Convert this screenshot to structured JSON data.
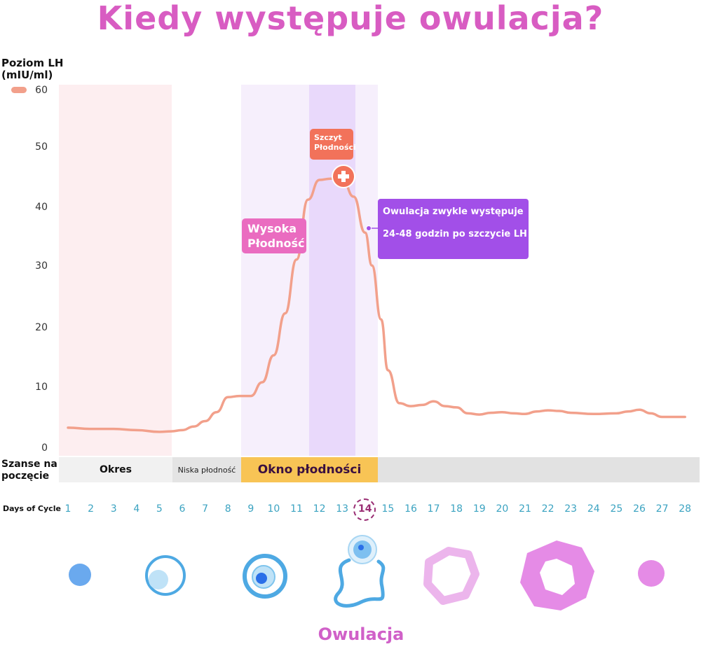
{
  "title": "Kiedy występuje owulacja?",
  "y_axis_label": [
    "Poziom LH",
    "(mIU/ml)"
  ],
  "chart_data": {
    "type": "line",
    "ylim": [
      0,
      60
    ],
    "yticks": [
      "60",
      "50",
      "40",
      "30",
      "20",
      "10",
      "0"
    ],
    "x": [
      1,
      2,
      3,
      4,
      5,
      6,
      7,
      8,
      9,
      10,
      11,
      12,
      13,
      14,
      15,
      16,
      17,
      18,
      19,
      20,
      21,
      22,
      23,
      24,
      25,
      26,
      27,
      28
    ],
    "series": [
      {
        "color": "#f2a08b",
        "x": [
          1,
          2,
          3,
          4,
          5,
          5.5,
          6,
          6.5,
          7,
          7.5,
          8,
          8.5,
          9,
          9.5,
          10,
          10.5,
          11,
          11.5,
          12,
          12.5,
          13,
          13.5,
          14,
          14.3,
          14.7,
          15,
          15.5,
          16,
          16.5,
          17,
          17.5,
          18,
          18.5,
          19,
          19.5,
          20,
          20.5,
          21,
          21.5,
          22,
          22.5,
          23,
          24,
          25,
          25.5,
          26,
          26.5,
          27,
          28
        ],
        "values": [
          3.4,
          3.2,
          3.2,
          3.0,
          2.7,
          2.8,
          3.0,
          3.6,
          4.5,
          6.0,
          8.5,
          8.7,
          8.7,
          11.0,
          15.5,
          22.5,
          31.5,
          41.5,
          44.8,
          45.0,
          45.0,
          42.0,
          36.0,
          30.5,
          21.5,
          13.0,
          7.5,
          7.0,
          7.2,
          7.8,
          7.0,
          6.8,
          5.8,
          5.6,
          5.9,
          6.0,
          5.8,
          5.7,
          6.1,
          6.3,
          6.2,
          5.9,
          5.7,
          5.8,
          6.1,
          6.4,
          5.8,
          5.2,
          5.2
        ]
      }
    ],
    "peak_label": [
      "Szczyt",
      "Płodności"
    ],
    "high_fertility_label": [
      "Wysoka",
      "Płodność"
    ],
    "ovulation_note": [
      "Owulacja zwykle występuje",
      "24-48 godzin po szczycie LH"
    ]
  },
  "chances": {
    "label": [
      "Szanse na",
      "poczęcie"
    ],
    "okres": "Okres",
    "low": "Niska płodność",
    "window": "Okno płodności"
  },
  "days_label": "Days of Cycle",
  "days": [
    "1",
    "2",
    "3",
    "4",
    "5",
    "6",
    "7",
    "8",
    "9",
    "10",
    "11",
    "12",
    "13",
    "14",
    "15",
    "16",
    "17",
    "18",
    "19",
    "20",
    "21",
    "22",
    "23",
    "24",
    "25",
    "26",
    "27",
    "28"
  ],
  "highlight_day": "14",
  "bottom_label": "Owulacja",
  "colors": {
    "title": "#d85cc2",
    "line": "#f2a08b",
    "period_bg": "#fdeef0",
    "window_bg": "#f6effc",
    "peak_bg": "#e9d9fb",
    "window_band": "#f8c455",
    "ovulation_note": "#a24fe8"
  }
}
